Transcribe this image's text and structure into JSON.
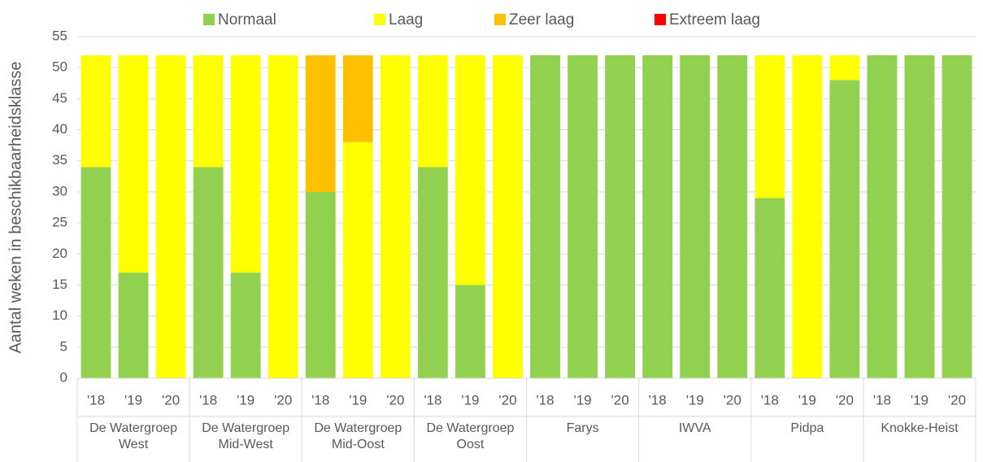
{
  "chart_data": {
    "type": "stacked_bar",
    "y_label": "Aantal weken in beschikbaarheidsklasse",
    "categories": [
      "'18",
      "'19",
      "'20",
      "'18",
      "'19",
      "'20",
      "'18",
      "'19",
      "'20",
      "'18",
      "'19",
      "'20",
      "'18",
      "'19",
      "'20",
      "'18",
      "'19",
      "'20",
      "'18",
      "'19",
      "'20",
      "'18",
      "'19",
      "'20"
    ],
    "groups": [
      "De Watergroep West",
      "De Watergroep Mid-West",
      "De Watergroep Mid-Oost",
      "De Watergroep Oost",
      "Farys",
      "IWVA",
      "Pidpa",
      "Knokke-Heist"
    ],
    "series": [
      {
        "name": "Normaal",
        "color": "#92d050",
        "values": [
          34,
          17,
          0,
          34,
          17,
          0,
          30,
          0,
          0,
          34,
          15,
          0,
          52,
          52,
          52,
          52,
          52,
          52,
          29,
          0,
          48,
          52,
          52,
          52
        ]
      },
      {
        "name": "Laag",
        "color": "#ffff00",
        "values": [
          18,
          35,
          52,
          18,
          35,
          52,
          0,
          38,
          52,
          18,
          37,
          52,
          0,
          0,
          0,
          0,
          0,
          0,
          23,
          52,
          4,
          0,
          0,
          0
        ]
      },
      {
        "name": "Zeer laag",
        "color": "#ffc000",
        "values": [
          0,
          0,
          0,
          0,
          0,
          0,
          22,
          14,
          0,
          0,
          0,
          0,
          0,
          0,
          0,
          0,
          0,
          0,
          0,
          0,
          0,
          0,
          0,
          0
        ]
      },
      {
        "name": "Extreem laag",
        "color": "#ff0000",
        "values": [
          0,
          0,
          0,
          0,
          0,
          0,
          0,
          0,
          0,
          0,
          0,
          0,
          0,
          0,
          0,
          0,
          0,
          0,
          0,
          0,
          0,
          0,
          0,
          0
        ]
      }
    ],
    "ylim": [
      0,
      55
    ],
    "yticks": [
      0,
      5,
      10,
      15,
      20,
      25,
      30,
      35,
      40,
      45,
      50,
      55
    ],
    "grid": true,
    "legend": "top"
  }
}
